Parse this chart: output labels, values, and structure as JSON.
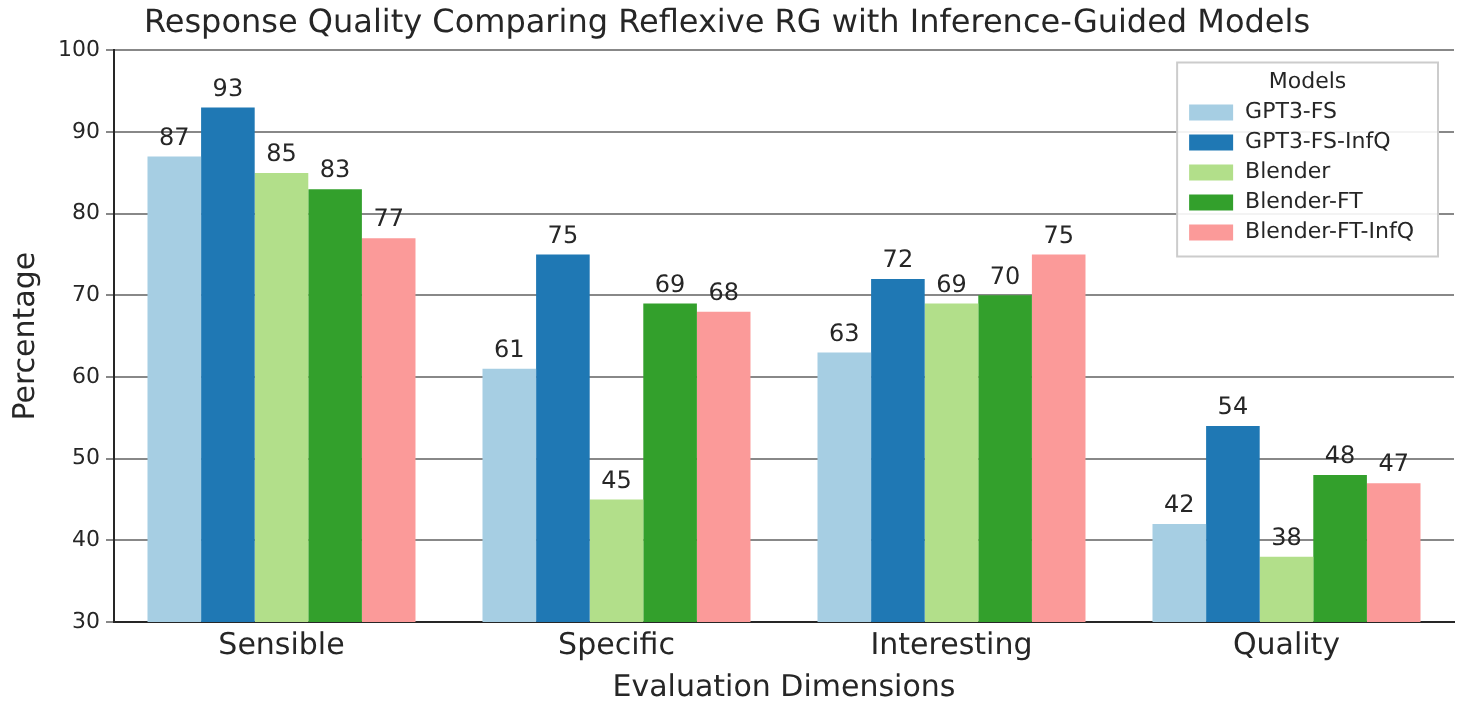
{
  "chart_data": {
    "type": "bar",
    "title": "Response Quality Comparing Reflexive RG with Inference-Guided Models",
    "xlabel": "Evaluation Dimensions",
    "ylabel": "Percentage",
    "legend_title": "Models",
    "categories": [
      "Sensible",
      "Specific",
      "Interesting",
      "Quality"
    ],
    "series": [
      {
        "name": "GPT3-FS",
        "color": "#a6cee3",
        "values": [
          87,
          61,
          63,
          42
        ]
      },
      {
        "name": "GPT3-FS-InfQ",
        "color": "#1f78b4",
        "values": [
          93,
          75,
          72,
          54
        ]
      },
      {
        "name": "Blender",
        "color": "#b2df8a",
        "values": [
          85,
          45,
          69,
          38
        ]
      },
      {
        "name": "Blender-FT",
        "color": "#33a02c",
        "values": [
          83,
          69,
          70,
          48
        ]
      },
      {
        "name": "Blender-FT-InfQ",
        "color": "#fb9a99",
        "values": [
          77,
          68,
          75,
          47
        ]
      }
    ],
    "ylim": [
      30,
      100
    ],
    "yticks": [
      30,
      40,
      50,
      60,
      70,
      80,
      90,
      100
    ],
    "grid": "y",
    "legend": "top right",
    "data_labels": true
  }
}
